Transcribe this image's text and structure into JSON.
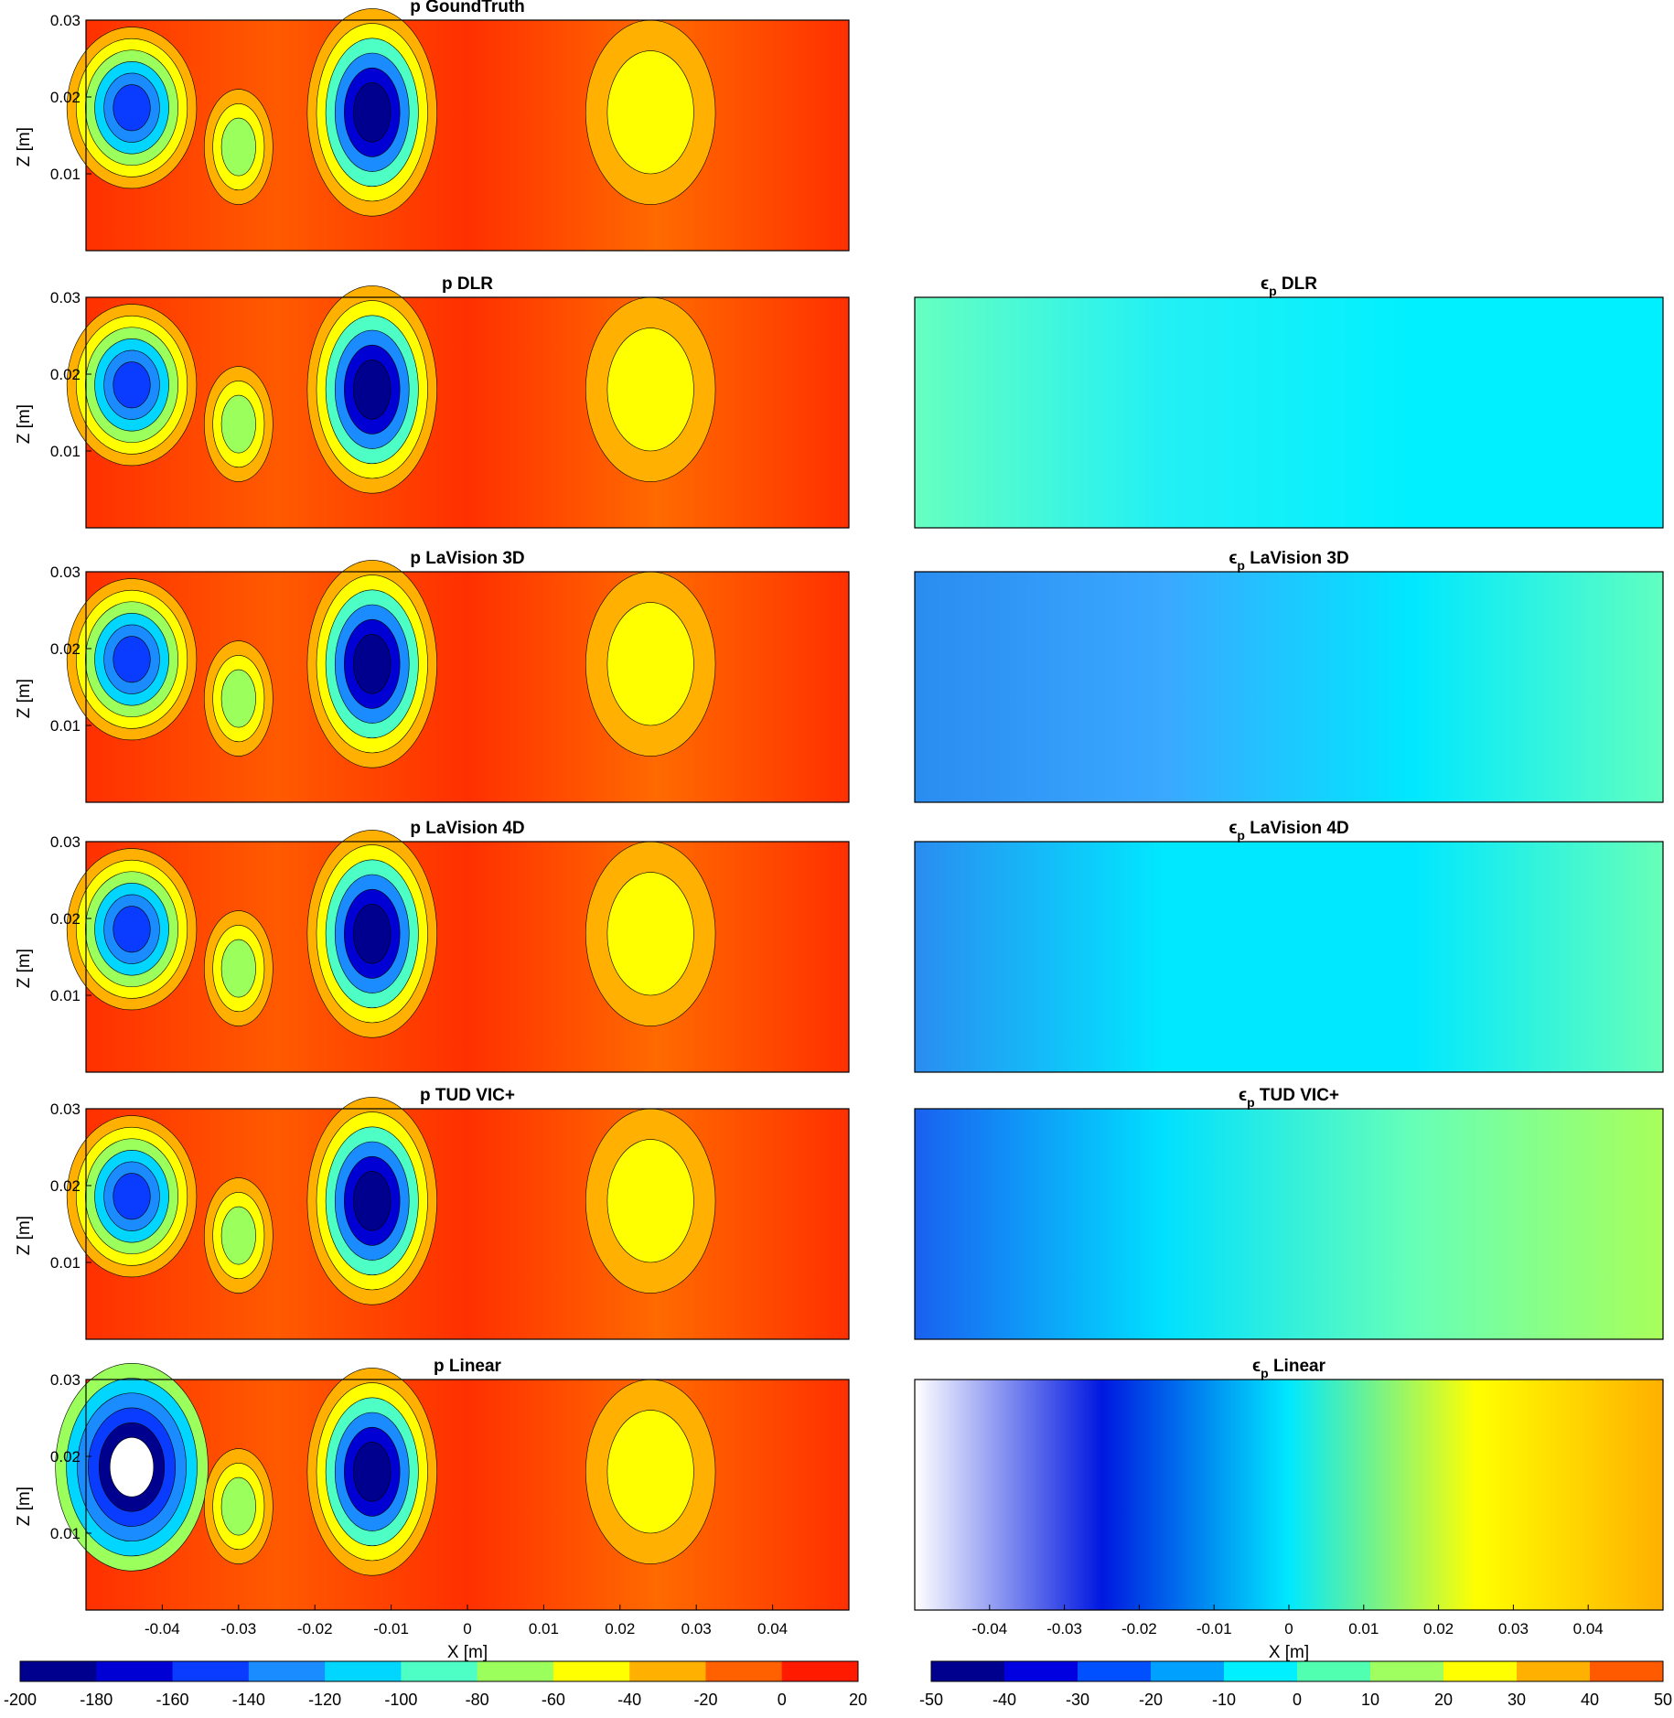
{
  "chart_data": [
    {
      "type": "heatmap",
      "panel": "left",
      "row": 0,
      "title": "p GoundTruth",
      "title_prefix": "",
      "title_sub": "",
      "ylabel": "Z [m]",
      "xlabel": "",
      "yticks": [
        "0.01",
        "0.02",
        "0.03"
      ],
      "xticks": []
    },
    {
      "type": "heatmap",
      "panel": "left",
      "row": 1,
      "title": "p DLR",
      "title_prefix": "",
      "title_sub": "",
      "ylabel": "Z [m]",
      "xlabel": "",
      "yticks": [
        "0.01",
        "0.02",
        "0.03"
      ],
      "xticks": []
    },
    {
      "type": "heatmap",
      "panel": "left",
      "row": 2,
      "title": "p LaVision 3D",
      "title_prefix": "",
      "title_sub": "",
      "ylabel": "Z [m]",
      "xlabel": "",
      "yticks": [
        "0.01",
        "0.02",
        "0.03"
      ],
      "xticks": []
    },
    {
      "type": "heatmap",
      "panel": "left",
      "row": 3,
      "title": "p LaVision 4D",
      "title_prefix": "",
      "title_sub": "",
      "ylabel": "Z [m]",
      "xlabel": "",
      "yticks": [
        "0.01",
        "0.02",
        "0.03"
      ],
      "xticks": []
    },
    {
      "type": "heatmap",
      "panel": "left",
      "row": 4,
      "title": "p TUD VIC+",
      "title_prefix": "",
      "title_sub": "",
      "ylabel": "Z [m]",
      "xlabel": "",
      "yticks": [
        "0.01",
        "0.02",
        "0.03"
      ],
      "xticks": []
    },
    {
      "type": "heatmap",
      "panel": "left",
      "row": 5,
      "title": "p Linear",
      "title_prefix": "",
      "title_sub": "",
      "ylabel": "Z [m]",
      "xlabel": "X [m]",
      "yticks": [
        "0.01",
        "0.02",
        "0.03"
      ],
      "xticks": [
        "-0.04",
        "-0.03",
        "-0.02",
        "-0.01",
        "0",
        "0.01",
        "0.02",
        "0.03",
        "0.04"
      ]
    },
    {
      "type": "heatmap",
      "panel": "right",
      "row": 1,
      "title": "DLR",
      "title_prefix": "ϵ",
      "title_sub": "p",
      "ylabel": "",
      "xlabel": "",
      "yticks": [],
      "xticks": []
    },
    {
      "type": "heatmap",
      "panel": "right",
      "row": 2,
      "title": "LaVision 3D",
      "title_prefix": "ϵ",
      "title_sub": "p",
      "ylabel": "",
      "xlabel": "",
      "yticks": [],
      "xticks": []
    },
    {
      "type": "heatmap",
      "panel": "right",
      "row": 3,
      "title": "LaVision 4D",
      "title_prefix": "ϵ",
      "title_sub": "p",
      "ylabel": "",
      "xlabel": "",
      "yticks": [],
      "xticks": []
    },
    {
      "type": "heatmap",
      "panel": "right",
      "row": 4,
      "title": "TUD VIC+",
      "title_prefix": "ϵ",
      "title_sub": "p",
      "ylabel": "",
      "xlabel": "",
      "yticks": [],
      "xticks": []
    },
    {
      "type": "heatmap",
      "panel": "right",
      "row": 5,
      "title": "Linear",
      "title_prefix": "ϵ",
      "title_sub": "p",
      "ylabel": "",
      "xlabel": "X [m]",
      "yticks": [],
      "xticks": [
        "-0.04",
        "-0.03",
        "-0.02",
        "-0.01",
        "0",
        "0.01",
        "0.02",
        "0.03",
        "0.04"
      ]
    }
  ],
  "colorbars": [
    {
      "name": "pressure",
      "ticks": [
        "-200",
        "-180",
        "-160",
        "-140",
        "-120",
        "-100",
        "-80",
        "-60",
        "-40",
        "-20",
        "0",
        "20"
      ],
      "colors": [
        "#00008f",
        "#0000d4",
        "#0a3cff",
        "#1a8cff",
        "#00d6ff",
        "#4dffc4",
        "#9bff5c",
        "#ffff00",
        "#ffb000",
        "#ff6000",
        "#ff1a00"
      ]
    },
    {
      "name": "error",
      "ticks": [
        "-50",
        "-40",
        "-30",
        "-20",
        "-10",
        "0",
        "10",
        "20",
        "30",
        "40",
        "50"
      ],
      "colors": [
        "#00008f",
        "#0000e0",
        "#0050ff",
        "#00a0ff",
        "#00f0ff",
        "#50ffb0",
        "#a0ff60",
        "#ffff00",
        "#ffb000",
        "#ff5a00"
      ]
    }
  ]
}
